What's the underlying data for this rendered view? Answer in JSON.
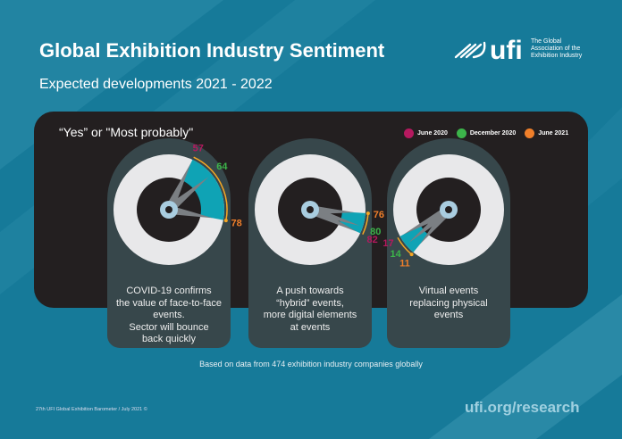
{
  "header": {
    "title": "Global Exhibition Industry Sentiment",
    "subtitle": "Expected developments 2021 - 2022"
  },
  "logo": {
    "wordmark": "ufi",
    "tagline_1": "The Global",
    "tagline_2": "Association of the",
    "tagline_3": "Exhibition Industry"
  },
  "chart_data": {
    "type": "gauge",
    "title": "“Yes” or \"Most probably\"",
    "unit": "%",
    "legend": [
      {
        "name": "June 2020",
        "color": "#b5195f"
      },
      {
        "name": "December 2020",
        "color": "#3cb44a"
      },
      {
        "name": "June 2021",
        "color": "#f07f2a"
      }
    ],
    "legend_placement": "top-right",
    "categories": [
      "COVID-19 confirms the value of face-to-face events. Sector will bounce back quickly",
      "A push towards “hybrid” events, more digital elements at events",
      "Virtual events replacing physical events"
    ],
    "category_lines": [
      [
        "COVID-19 confirms",
        "the value of face-to-face",
        "events.",
        "Sector will bounce",
        "back quickly"
      ],
      [
        "A push towards",
        "“hybrid” events,",
        "more digital elements",
        "at events"
      ],
      [
        "Virtual events",
        "replacing physical",
        "events"
      ]
    ],
    "series": [
      {
        "name": "June 2020",
        "values": [
          57,
          82,
          17
        ]
      },
      {
        "name": "December 2020",
        "values": [
          64,
          80,
          14
        ]
      },
      {
        "name": "June 2021",
        "values": [
          78,
          76,
          11
        ]
      }
    ]
  },
  "colors": {
    "background": "#167a99",
    "panel": "#231f20",
    "card": "#37474b",
    "wedge": "#0fa3b5",
    "arrow": "#f5a623"
  },
  "note": "Based on data from 474 exhibition industry companies globally",
  "footer": {
    "source": "27th UFI Global Exhibition Barometer / July 2021 ©",
    "url": "ufi.org/research"
  }
}
